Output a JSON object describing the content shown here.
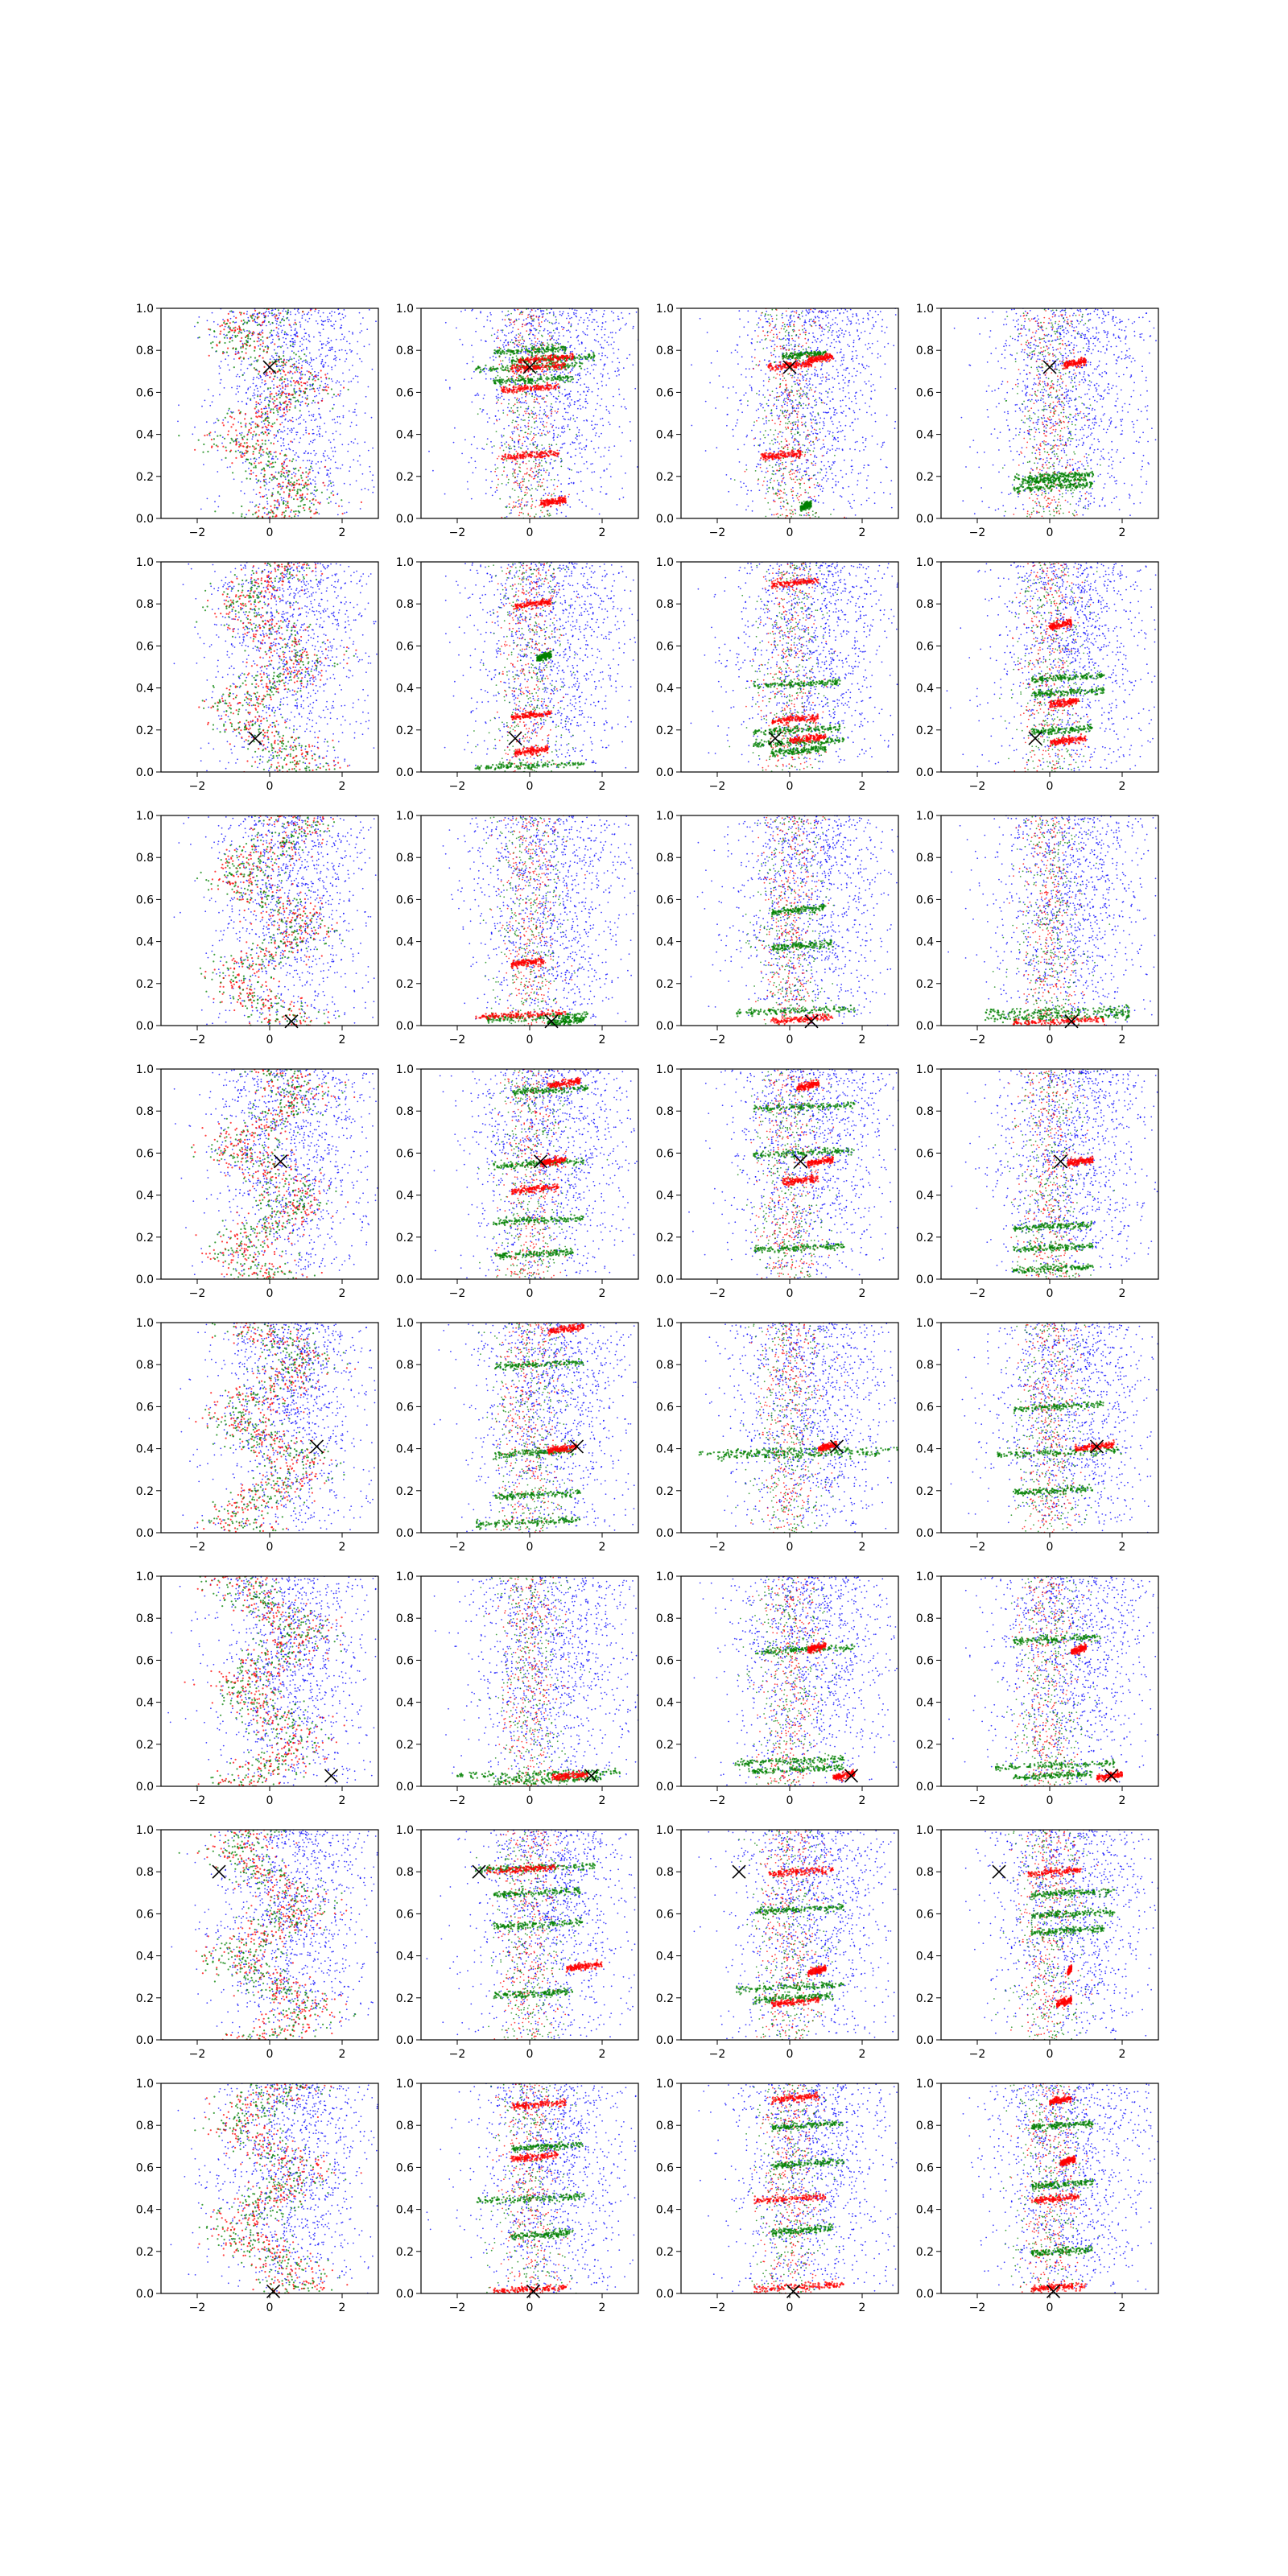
{
  "chart_data": {
    "type": "scatter",
    "layout_grid": "8 rows x 4 columns",
    "series_colors": {
      "blue": "#0000ff",
      "green": "#008000",
      "red": "#ff0000",
      "marker": "#000000"
    },
    "marker_symbol": "x",
    "xlim": [
      -3,
      3
    ],
    "ylim": [
      0,
      1
    ],
    "xticks": [
      -2,
      0,
      2
    ],
    "xtick_labels": [
      "−2",
      "0",
      "2"
    ],
    "yticks": [
      0.0,
      0.2,
      0.4,
      0.6,
      0.8,
      1.0
    ],
    "ytick_labels": [
      "0.0",
      "0.2",
      "0.4",
      "0.6",
      "0.8",
      "1.0"
    ],
    "rows": [
      {
        "marker": [
          0.0,
          0.72
        ],
        "panels": [
          {
            "col": 1,
            "mode": "zigzag",
            "red": [],
            "green": []
          },
          {
            "col": 2,
            "mode": "bands",
            "red": [
              [
                0.76,
                -0.3,
                1.2
              ],
              [
                0.72,
                -0.5,
                1.0
              ],
              [
                0.62,
                -0.8,
                0.8
              ],
              [
                0.3,
                -0.8,
                0.8
              ],
              [
                0.08,
                0.3,
                1.0
              ]
            ],
            "green": [
              [
                0.76,
                -0.5,
                1.8
              ],
              [
                0.72,
                -1.5,
                1.5
              ],
              [
                0.66,
                -1.0,
                1.2
              ],
              [
                0.8,
                -1.0,
                1.0
              ]
            ]
          },
          {
            "col": 3,
            "mode": "bands",
            "red": [
              [
                0.76,
                0.5,
                1.2
              ],
              [
                0.73,
                -0.6,
                0.6
              ],
              [
                0.3,
                -0.8,
                0.3
              ]
            ],
            "green": [
              [
                0.78,
                -0.2,
                1.0
              ],
              [
                0.06,
                0.3,
                0.6
              ]
            ]
          },
          {
            "col": 4,
            "mode": "bands",
            "red": [
              [
                0.74,
                0.4,
                1.0
              ]
            ],
            "green": [
              [
                0.2,
                -1.0,
                1.2
              ],
              [
                0.15,
                -1.0,
                1.2
              ],
              [
                0.18,
                -0.8,
                1.0
              ]
            ]
          }
        ]
      },
      {
        "marker": [
          -0.4,
          0.16
        ],
        "panels": [
          {
            "col": 1,
            "mode": "zigzag",
            "red": [],
            "green": []
          },
          {
            "col": 2,
            "mode": "bands",
            "red": [
              [
                0.8,
                -0.4,
                0.6
              ],
              [
                0.27,
                -0.5,
                0.6
              ],
              [
                0.1,
                -0.4,
                0.5
              ]
            ],
            "green": [
              [
                0.03,
                -1.5,
                1.5
              ],
              [
                0.55,
                0.2,
                0.6
              ]
            ]
          },
          {
            "col": 3,
            "mode": "bands",
            "red": [
              [
                0.9,
                -0.5,
                0.8
              ],
              [
                0.25,
                -0.5,
                0.8
              ],
              [
                0.16,
                0.0,
                1.0
              ]
            ],
            "green": [
              [
                0.42,
                -1.0,
                1.4
              ],
              [
                0.14,
                -1.0,
                1.5
              ],
              [
                0.1,
                -0.5,
                1.0
              ],
              [
                0.2,
                -1.0,
                1.4
              ]
            ]
          },
          {
            "col": 4,
            "mode": "bands",
            "red": [
              [
                0.7,
                0.0,
                0.6
              ],
              [
                0.33,
                0.0,
                0.8
              ],
              [
                0.15,
                0.0,
                1.0
              ]
            ],
            "green": [
              [
                0.45,
                -0.5,
                1.5
              ],
              [
                0.38,
                -0.5,
                1.5
              ],
              [
                0.2,
                -0.5,
                1.2
              ]
            ]
          }
        ]
      },
      {
        "marker": [
          0.6,
          0.02
        ],
        "panels": [
          {
            "col": 1,
            "mode": "zigzag",
            "red": [],
            "green": []
          },
          {
            "col": 2,
            "mode": "bands",
            "red": [
              [
                0.05,
                -1.5,
                1.0
              ],
              [
                0.3,
                -0.5,
                0.4
              ]
            ],
            "green": [
              [
                0.04,
                -1.2,
                1.6
              ],
              [
                0.02,
                0.5,
                1.5
              ]
            ]
          },
          {
            "col": 3,
            "mode": "bands",
            "red": [
              [
                0.03,
                -0.5,
                1.2
              ]
            ],
            "green": [
              [
                0.07,
                -1.5,
                1.8
              ],
              [
                0.38,
                -0.5,
                1.2
              ],
              [
                0.55,
                -0.5,
                1.0
              ]
            ]
          },
          {
            "col": 4,
            "mode": "bands",
            "red": [
              [
                0.02,
                -1.0,
                1.5
              ]
            ],
            "green": [
              [
                0.07,
                -1.8,
                2.2
              ],
              [
                0.04,
                -1.8,
                2.2
              ]
            ]
          }
        ]
      },
      {
        "marker": [
          0.3,
          0.56
        ],
        "panels": [
          {
            "col": 1,
            "mode": "zigzag",
            "red": [],
            "green": []
          },
          {
            "col": 2,
            "mode": "bands",
            "red": [
              [
                0.93,
                0.5,
                1.4
              ],
              [
                0.56,
                0.3,
                1.0
              ],
              [
                0.43,
                -0.5,
                0.8
              ]
            ],
            "green": [
              [
                0.9,
                -0.5,
                1.6
              ],
              [
                0.55,
                -1.0,
                1.5
              ],
              [
                0.28,
                -1.0,
                1.5
              ],
              [
                0.12,
                -1.0,
                1.2
              ]
            ]
          },
          {
            "col": 3,
            "mode": "bands",
            "red": [
              [
                0.92,
                0.2,
                0.8
              ],
              [
                0.56,
                0.5,
                1.2
              ],
              [
                0.47,
                -0.2,
                0.8
              ]
            ],
            "green": [
              [
                0.82,
                -1.0,
                1.8
              ],
              [
                0.6,
                -1.0,
                1.8
              ],
              [
                0.15,
                -1.0,
                1.5
              ]
            ]
          },
          {
            "col": 4,
            "mode": "bands",
            "red": [
              [
                0.56,
                0.5,
                1.2
              ]
            ],
            "green": [
              [
                0.25,
                -1.0,
                1.2
              ],
              [
                0.15,
                -1.0,
                1.2
              ],
              [
                0.05,
                -1.0,
                1.2
              ]
            ]
          }
        ]
      },
      {
        "marker": [
          1.3,
          0.41
        ],
        "panels": [
          {
            "col": 1,
            "mode": "zigzag",
            "red": [],
            "green": []
          },
          {
            "col": 2,
            "mode": "bands",
            "red": [
              [
                0.97,
                0.5,
                1.5
              ],
              [
                0.4,
                0.5,
                1.3
              ]
            ],
            "green": [
              [
                0.05,
                -1.5,
                1.4
              ],
              [
                0.38,
                -1.0,
                1.2
              ],
              [
                0.8,
                -1.0,
                1.5
              ],
              [
                0.18,
                -1.0,
                1.4
              ]
            ]
          },
          {
            "col": 3,
            "mode": "bands",
            "red": [
              [
                0.41,
                0.8,
                1.3
              ]
            ],
            "green": [
              [
                0.39,
                -2.5,
                3.0
              ],
              [
                0.37,
                -2.0,
                2.5
              ]
            ]
          },
          {
            "col": 4,
            "mode": "bands",
            "red": [
              [
                0.41,
                0.7,
                1.8
              ]
            ],
            "green": [
              [
                0.38,
                -1.5,
                2.0
              ],
              [
                0.6,
                -1.0,
                1.5
              ],
              [
                0.2,
                -1.0,
                1.2
              ]
            ]
          }
        ]
      },
      {
        "marker": [
          1.7,
          0.05
        ],
        "panels": [
          {
            "col": 1,
            "mode": "zigzag",
            "red": [],
            "green": []
          },
          {
            "col": 2,
            "mode": "bands",
            "red": [
              [
                0.05,
                0.6,
                1.6
              ]
            ],
            "green": [
              [
                0.06,
                -2.0,
                2.5
              ],
              [
                0.03,
                -1.0,
                2.0
              ]
            ]
          },
          {
            "col": 3,
            "mode": "bands",
            "red": [
              [
                0.05,
                1.2,
                1.8
              ],
              [
                0.66,
                0.5,
                1.0
              ]
            ],
            "green": [
              [
                0.65,
                -1.0,
                1.8
              ],
              [
                0.12,
                -1.5,
                1.5
              ],
              [
                0.08,
                -1.2,
                1.5
              ]
            ]
          },
          {
            "col": 4,
            "mode": "bands",
            "red": [
              [
                0.05,
                1.3,
                2.0
              ],
              [
                0.65,
                0.6,
                1.0
              ]
            ],
            "green": [
              [
                0.1,
                -1.5,
                1.8
              ],
              [
                0.05,
                -1.0,
                1.2
              ],
              [
                0.7,
                -1.0,
                1.4
              ]
            ]
          }
        ]
      },
      {
        "marker": [
          -1.4,
          0.8
        ],
        "panels": [
          {
            "col": 1,
            "mode": "zigzag",
            "red": [],
            "green": []
          },
          {
            "col": 2,
            "mode": "bands",
            "red": [
              [
                0.35,
                1.0,
                2.0
              ],
              [
                0.81,
                -1.2,
                0.7
              ]
            ],
            "green": [
              [
                0.82,
                -1.5,
                1.8
              ],
              [
                0.55,
                -1.0,
                1.5
              ],
              [
                0.7,
                -1.0,
                1.4
              ],
              [
                0.22,
                -1.0,
                1.2
              ]
            ]
          },
          {
            "col": 3,
            "mode": "bands",
            "red": [
              [
                0.8,
                -0.6,
                1.2
              ],
              [
                0.33,
                0.5,
                1.0
              ],
              [
                0.18,
                -0.5,
                0.8
              ]
            ],
            "green": [
              [
                0.25,
                -1.5,
                1.5
              ],
              [
                0.2,
                -1.0,
                1.2
              ],
              [
                0.62,
                -1.0,
                1.5
              ]
            ]
          },
          {
            "col": 4,
            "mode": "bands",
            "red": [
              [
                0.8,
                -0.6,
                0.9
              ],
              [
                0.33,
                0.5,
                0.6
              ],
              [
                0.18,
                0.2,
                0.6
              ]
            ],
            "green": [
              [
                0.7,
                -0.5,
                1.8
              ],
              [
                0.6,
                -0.5,
                1.8
              ],
              [
                0.52,
                -0.5,
                1.5
              ]
            ]
          }
        ]
      },
      {
        "marker": [
          0.1,
          0.01
        ],
        "panels": [
          {
            "col": 1,
            "mode": "zigzag",
            "red": [],
            "green": []
          },
          {
            "col": 2,
            "mode": "bands",
            "red": [
              [
                0.02,
                -1.0,
                1.0
              ],
              [
                0.9,
                -0.5,
                1.0
              ],
              [
                0.65,
                -0.5,
                0.8
              ]
            ],
            "green": [
              [
                0.45,
                -1.5,
                1.5
              ],
              [
                0.7,
                -0.5,
                1.5
              ],
              [
                0.28,
                -0.5,
                1.2
              ]
            ]
          },
          {
            "col": 3,
            "mode": "bands",
            "red": [
              [
                0.45,
                -1.0,
                1.0
              ],
              [
                0.03,
                -1.0,
                1.5
              ],
              [
                0.93,
                -0.5,
                0.8
              ]
            ],
            "green": [
              [
                0.8,
                -0.5,
                1.5
              ],
              [
                0.62,
                -0.5,
                1.5
              ],
              [
                0.3,
                -0.5,
                1.2
              ]
            ]
          },
          {
            "col": 4,
            "mode": "bands",
            "red": [
              [
                0.45,
                -0.5,
                0.8
              ],
              [
                0.03,
                -0.5,
                1.0
              ],
              [
                0.92,
                0.0,
                0.6
              ],
              [
                0.63,
                0.3,
                0.7
              ]
            ],
            "green": [
              [
                0.8,
                -0.5,
                1.2
              ],
              [
                0.52,
                -0.5,
                1.2
              ],
              [
                0.2,
                -0.5,
                1.2
              ]
            ]
          }
        ]
      }
    ]
  }
}
